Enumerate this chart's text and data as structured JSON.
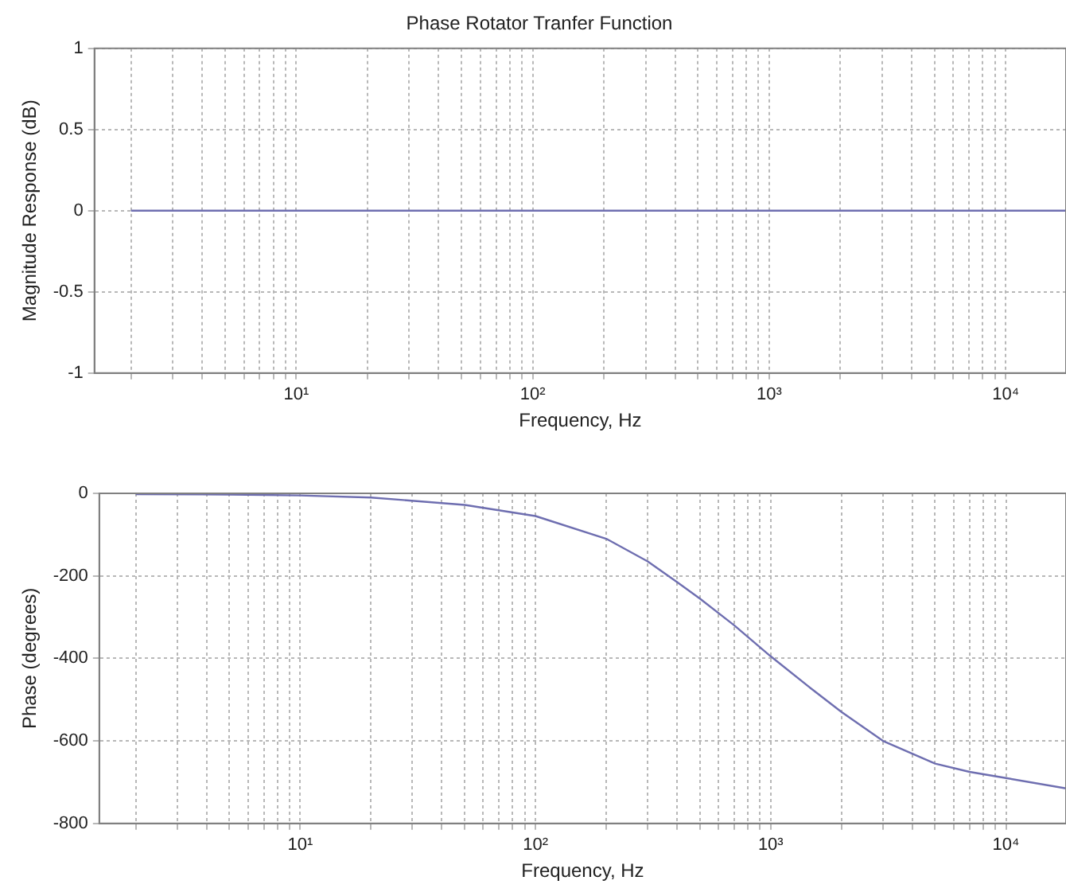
{
  "chart_data": [
    {
      "type": "line",
      "title": "Phase Rotator Tranfer Function",
      "xlabel": "Frequency, Hz",
      "ylabel": "Magnitude Response (dB)",
      "log": "x",
      "grid": true,
      "line_style": "solid",
      "marker": "none",
      "x": [
        2,
        10,
        100,
        1000,
        10000,
        18000
      ],
      "series": [
        {
          "color": "#6e6eb0",
          "values": [
            0,
            0,
            0,
            0,
            0,
            0
          ]
        }
      ],
      "xlim": [
        1.4,
        18000
      ],
      "ylim": [
        -1,
        1
      ],
      "yticks": [
        -1,
        -0.5,
        0,
        0.5,
        1
      ],
      "xticks": [
        {
          "value": 2,
          "label": null
        },
        {
          "value": 3,
          "label": null
        },
        {
          "value": 4,
          "label": null
        },
        {
          "value": 5,
          "label": null
        },
        {
          "value": 6,
          "label": null
        },
        {
          "value": 7,
          "label": null
        },
        {
          "value": 8,
          "label": null
        },
        {
          "value": 9,
          "label": null
        },
        {
          "value": 10,
          "label": "10¹"
        },
        {
          "value": 20,
          "label": null
        },
        {
          "value": 30,
          "label": null
        },
        {
          "value": 40,
          "label": null
        },
        {
          "value": 50,
          "label": null
        },
        {
          "value": 60,
          "label": null
        },
        {
          "value": 70,
          "label": null
        },
        {
          "value": 80,
          "label": null
        },
        {
          "value": 90,
          "label": null
        },
        {
          "value": 100,
          "label": "10²"
        },
        {
          "value": 200,
          "label": null
        },
        {
          "value": 300,
          "label": null
        },
        {
          "value": 400,
          "label": null
        },
        {
          "value": 500,
          "label": null
        },
        {
          "value": 600,
          "label": null
        },
        {
          "value": 700,
          "label": null
        },
        {
          "value": 800,
          "label": null
        },
        {
          "value": 900,
          "label": null
        },
        {
          "value": 1000,
          "label": "10³"
        },
        {
          "value": 2000,
          "label": null
        },
        {
          "value": 3000,
          "label": null
        },
        {
          "value": 4000,
          "label": null
        },
        {
          "value": 5000,
          "label": null
        },
        {
          "value": 6000,
          "label": null
        },
        {
          "value": 7000,
          "label": null
        },
        {
          "value": 8000,
          "label": null
        },
        {
          "value": 9000,
          "label": null
        },
        {
          "value": 10000,
          "label": "10⁴"
        }
      ]
    },
    {
      "type": "line",
      "xlabel": "Frequency, Hz",
      "ylabel": "Phase (degrees)",
      "log": "x",
      "grid": true,
      "line_style": "solid",
      "marker": "none",
      "x": [
        2,
        5,
        10,
        20,
        50,
        100,
        200,
        300,
        400,
        500,
        700,
        1000,
        1500,
        2000,
        3000,
        5000,
        7000,
        10000,
        18000
      ],
      "series": [
        {
          "color": "#6e6eb0",
          "values": [
            -2,
            -3,
            -5,
            -10,
            -28,
            -55,
            -110,
            -165,
            -215,
            -255,
            -320,
            -395,
            -475,
            -530,
            -600,
            -655,
            -675,
            -690,
            -715
          ]
        }
      ],
      "xlim": [
        1.4,
        18000
      ],
      "ylim": [
        -800,
        0
      ],
      "yticks": [
        -800,
        -600,
        -400,
        -200,
        0
      ],
      "xticks": [
        {
          "value": 2,
          "label": null
        },
        {
          "value": 3,
          "label": null
        },
        {
          "value": 4,
          "label": null
        },
        {
          "value": 5,
          "label": null
        },
        {
          "value": 6,
          "label": null
        },
        {
          "value": 7,
          "label": null
        },
        {
          "value": 8,
          "label": null
        },
        {
          "value": 9,
          "label": null
        },
        {
          "value": 10,
          "label": "10¹"
        },
        {
          "value": 20,
          "label": null
        },
        {
          "value": 30,
          "label": null
        },
        {
          "value": 40,
          "label": null
        },
        {
          "value": 50,
          "label": null
        },
        {
          "value": 60,
          "label": null
        },
        {
          "value": 70,
          "label": null
        },
        {
          "value": 80,
          "label": null
        },
        {
          "value": 90,
          "label": null
        },
        {
          "value": 100,
          "label": "10²"
        },
        {
          "value": 200,
          "label": null
        },
        {
          "value": 300,
          "label": null
        },
        {
          "value": 400,
          "label": null
        },
        {
          "value": 500,
          "label": null
        },
        {
          "value": 600,
          "label": null
        },
        {
          "value": 700,
          "label": null
        },
        {
          "value": 800,
          "label": null
        },
        {
          "value": 900,
          "label": null
        },
        {
          "value": 1000,
          "label": "10³"
        },
        {
          "value": 2000,
          "label": null
        },
        {
          "value": 3000,
          "label": null
        },
        {
          "value": 4000,
          "label": null
        },
        {
          "value": 5000,
          "label": null
        },
        {
          "value": 6000,
          "label": null
        },
        {
          "value": 7000,
          "label": null
        },
        {
          "value": 8000,
          "label": null
        },
        {
          "value": 9000,
          "label": null
        },
        {
          "value": 10000,
          "label": "10⁴"
        }
      ]
    }
  ]
}
